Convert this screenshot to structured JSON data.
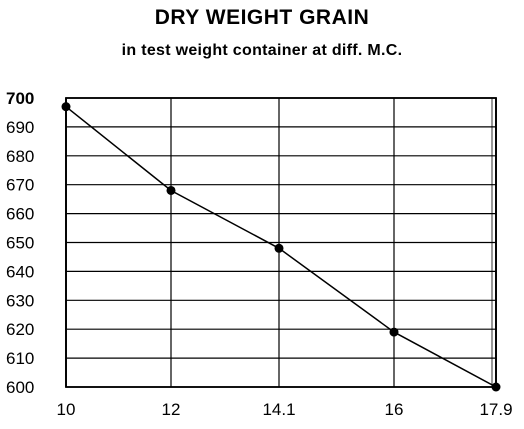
{
  "chart_data": {
    "type": "line",
    "title": "DRY WEIGHT GRAIN",
    "subtitle": "in test weight container at diff. M.C.",
    "xlabel": "",
    "ylabel": "",
    "x_tick_labels": [
      "10",
      "12",
      "14.1",
      "16",
      "17.9"
    ],
    "y_tick_labels": [
      "700",
      "690",
      "680",
      "670",
      "660",
      "650",
      "640",
      "630",
      "620",
      "610",
      "600"
    ],
    "ylim": [
      600,
      700
    ],
    "grid": true,
    "series": [
      {
        "points": [
          {
            "x": "10",
            "y": 697
          },
          {
            "x": "12",
            "y": 668
          },
          {
            "x": "14.1",
            "y": 648
          },
          {
            "x": "16",
            "y": 619
          },
          {
            "x": "17.9",
            "y": 600
          }
        ]
      }
    ]
  },
  "colors": {
    "ink": "#000000",
    "background": "#ffffff"
  }
}
